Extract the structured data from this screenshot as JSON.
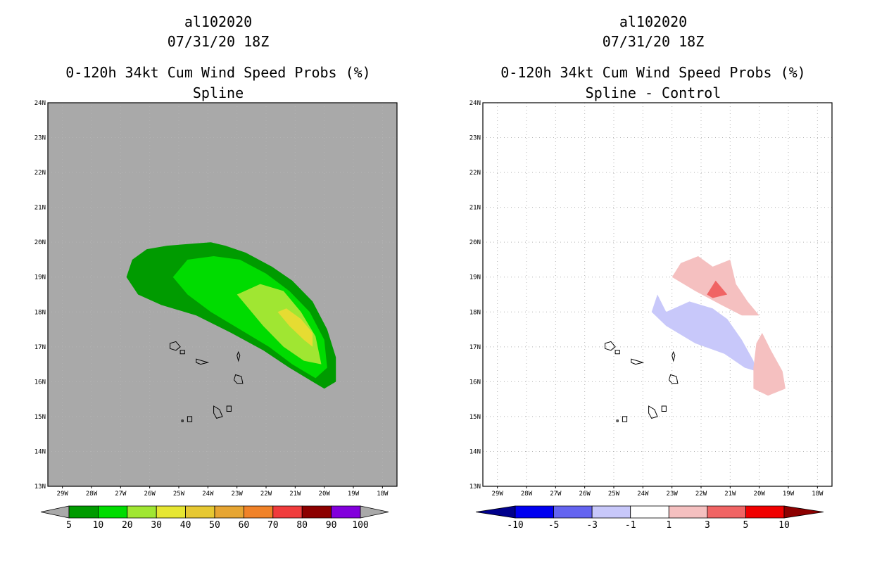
{
  "chart_data": [
    {
      "type": "heatmap",
      "title": "al102020",
      "subtitle": "07/31/20 18Z",
      "title2": "0-120h 34kt Cum Wind Speed Probs (%)",
      "title3": "Spline",
      "xlabel": "",
      "ylabel": "",
      "xlim": [
        -29.5,
        -17.5
      ],
      "ylim": [
        13,
        24
      ],
      "x_ticks": [
        "29W",
        "28W",
        "27W",
        "26W",
        "25W",
        "24W",
        "23W",
        "22W",
        "21W",
        "20W",
        "19W",
        "18W"
      ],
      "y_ticks": [
        "13N",
        "14N",
        "15N",
        "16N",
        "17N",
        "18N",
        "19N",
        "20N",
        "21N",
        "22N",
        "23N",
        "24N"
      ],
      "background_color": "#a9a9a9",
      "grid": true,
      "contours": [
        {
          "level": 5,
          "color": "#009b00",
          "points": [
            [
              -26.8,
              19
            ],
            [
              -26.6,
              19.5
            ],
            [
              -26.1,
              19.8
            ],
            [
              -25.4,
              19.9
            ],
            [
              -23.9,
              20
            ],
            [
              -23.4,
              19.9
            ],
            [
              -22.7,
              19.7
            ],
            [
              -21.8,
              19.3
            ],
            [
              -21.1,
              18.9
            ],
            [
              -20.4,
              18.3
            ],
            [
              -19.9,
              17.5
            ],
            [
              -19.6,
              16.7
            ],
            [
              -19.6,
              16
            ],
            [
              -20,
              15.8
            ],
            [
              -20.4,
              16
            ],
            [
              -21.2,
              16.4
            ],
            [
              -22.1,
              16.9
            ],
            [
              -23.2,
              17.4
            ],
            [
              -24.4,
              17.9
            ],
            [
              -25.6,
              18.2
            ],
            [
              -26.4,
              18.5
            ]
          ]
        },
        {
          "level": 10,
          "color": "#00dc00",
          "points": [
            [
              -25.2,
              19
            ],
            [
              -24.7,
              19.5
            ],
            [
              -23.8,
              19.6
            ],
            [
              -22.9,
              19.5
            ],
            [
              -22,
              19.1
            ],
            [
              -21.2,
              18.6
            ],
            [
              -20.5,
              18
            ],
            [
              -20,
              17.2
            ],
            [
              -19.9,
              16.4
            ],
            [
              -20.3,
              16.1
            ],
            [
              -21.1,
              16.5
            ],
            [
              -21.9,
              17
            ],
            [
              -22.9,
              17.5
            ],
            [
              -23.9,
              18
            ],
            [
              -24.7,
              18.5
            ]
          ]
        },
        {
          "level": 20,
          "color": "#a0e632",
          "points": [
            [
              -23,
              18.5
            ],
            [
              -22.2,
              18.8
            ],
            [
              -21.4,
              18.6
            ],
            [
              -20.8,
              18
            ],
            [
              -20.3,
              17.3
            ],
            [
              -20.1,
              16.5
            ],
            [
              -20.7,
              16.6
            ],
            [
              -21.4,
              17
            ],
            [
              -22.1,
              17.6
            ],
            [
              -22.6,
              18.1
            ]
          ]
        },
        {
          "level": 30,
          "color": "#e6dc32",
          "points": [
            [
              -21.6,
              18
            ],
            [
              -21.3,
              18.1
            ],
            [
              -20.8,
              17.8
            ],
            [
              -20.4,
              17.4
            ],
            [
              -20.4,
              17
            ],
            [
              -20.7,
              17.2
            ],
            [
              -21.2,
              17.6
            ]
          ]
        }
      ],
      "colorbar": {
        "labels": [
          "5",
          "10",
          "20",
          "30",
          "40",
          "50",
          "60",
          "70",
          "80",
          "90",
          "100"
        ],
        "colors": [
          "#a9a9a9",
          "#009b00",
          "#00dc00",
          "#a0e632",
          "#e6e632",
          "#e6c832",
          "#e6a532",
          "#f08228",
          "#f03c3c",
          "#8c0000",
          "#8200dc",
          "#a9a9a9"
        ]
      }
    },
    {
      "type": "heatmap",
      "title": "al102020",
      "subtitle": "07/31/20 18Z",
      "title2": "0-120h 34kt Cum Wind Speed Probs (%)",
      "title3": "Spline - Control",
      "xlabel": "",
      "ylabel": "",
      "xlim": [
        -29.5,
        -17.5
      ],
      "ylim": [
        13,
        24
      ],
      "x_ticks": [
        "29W",
        "28W",
        "27W",
        "26W",
        "25W",
        "24W",
        "23W",
        "22W",
        "21W",
        "20W",
        "19W",
        "18W"
      ],
      "y_ticks": [
        "13N",
        "14N",
        "15N",
        "16N",
        "17N",
        "18N",
        "19N",
        "20N",
        "21N",
        "22N",
        "23N",
        "24N"
      ],
      "background_color": "#ffffff",
      "grid": true,
      "contours": [
        {
          "level": 1,
          "color": "#f5c0c0",
          "points": [
            [
              -23,
              19
            ],
            [
              -22.7,
              19.4
            ],
            [
              -22.1,
              19.6
            ],
            [
              -21.6,
              19.3
            ],
            [
              -21,
              19.5
            ],
            [
              -20.8,
              18.8
            ],
            [
              -20.4,
              18.3
            ],
            [
              -20,
              17.9
            ],
            [
              -20.6,
              17.9
            ],
            [
              -21.3,
              18.2
            ],
            [
              -22.2,
              18.6
            ]
          ]
        },
        {
          "level": -1,
          "color": "#c8c8fa",
          "points": [
            [
              -23.5,
              18.5
            ],
            [
              -23.2,
              18
            ],
            [
              -22.4,
              18.3
            ],
            [
              -21.6,
              18.1
            ],
            [
              -21.1,
              17.8
            ],
            [
              -20.6,
              17.2
            ],
            [
              -20.2,
              16.6
            ],
            [
              -20.1,
              16.3
            ],
            [
              -20.5,
              16.4
            ],
            [
              -21.2,
              16.8
            ],
            [
              -22.2,
              17.1
            ],
            [
              -23.2,
              17.6
            ],
            [
              -23.7,
              18
            ]
          ]
        },
        {
          "level": 3,
          "color": "#f06464",
          "points": [
            [
              -21.5,
              18.9
            ],
            [
              -21.1,
              18.5
            ],
            [
              -21.6,
              18.4
            ],
            [
              -21.8,
              18.5
            ]
          ]
        },
        {
          "level": 1,
          "color": "#f5c0c0",
          "points": [
            [
              -19.9,
              17.4
            ],
            [
              -19.6,
              16.9
            ],
            [
              -19.2,
              16.3
            ],
            [
              -19.1,
              15.8
            ],
            [
              -19.7,
              15.6
            ],
            [
              -20.2,
              15.8
            ],
            [
              -20.2,
              16.4
            ],
            [
              -20.1,
              17.1
            ]
          ]
        }
      ],
      "colorbar": {
        "labels": [
          "-10",
          "-5",
          "-3",
          "-1",
          "1",
          "3",
          "5",
          "10"
        ],
        "colors": [
          "#00008c",
          "#0000f0",
          "#6464f0",
          "#c8c8fa",
          "#ffffff",
          "#f5c0c0",
          "#f06464",
          "#f00000",
          "#8c0000"
        ]
      }
    }
  ]
}
